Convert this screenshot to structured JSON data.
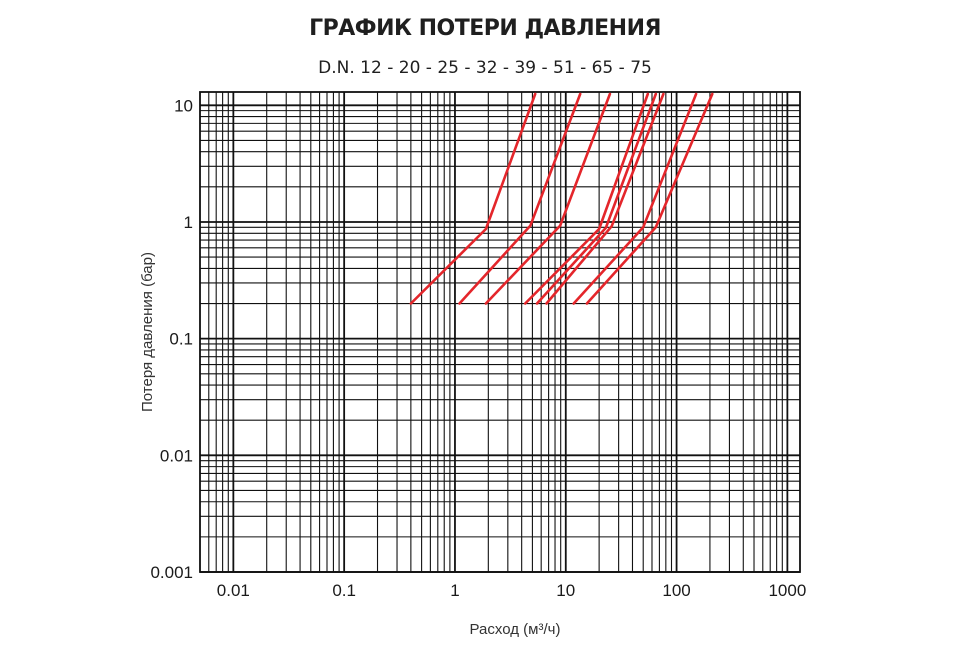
{
  "chart_data": {
    "type": "line",
    "title": "ГРАФИК ПОТЕРИ ДАВЛЕНИЯ",
    "subtitle": "D.N. 12 - 20 - 25 - 32 - 39 - 51 - 65 - 75",
    "xlabel": "Расход (м³/ч)",
    "ylabel": "Потеря давления (бар)",
    "xscale": "log",
    "yscale": "log",
    "xlim": [
      0.005,
      1300
    ],
    "ylim": [
      0.001,
      13
    ],
    "grid": true,
    "xticks": [
      {
        "value": 0.01,
        "label": "0.01"
      },
      {
        "value": 0.1,
        "label": "0.1"
      },
      {
        "value": 1,
        "label": "1"
      },
      {
        "value": 10,
        "label": "10"
      },
      {
        "value": 100,
        "label": "100"
      },
      {
        "value": 1000,
        "label": "1000"
      }
    ],
    "yticks": [
      {
        "value": 0.001,
        "label": "0.001"
      },
      {
        "value": 0.01,
        "label": "0.01"
      },
      {
        "value": 0.1,
        "label": "0.1"
      },
      {
        "value": 1,
        "label": "1"
      },
      {
        "value": 10,
        "label": "10"
      }
    ],
    "line_color": "#e4262b",
    "series": [
      {
        "points": [
          [
            0.4,
            0.2
          ],
          [
            1.9,
            0.87
          ],
          [
            5.3,
            12.5
          ]
        ]
      },
      {
        "points": [
          [
            1.1,
            0.2
          ],
          [
            4.8,
            0.93
          ],
          [
            13.5,
            12.5
          ]
        ]
      },
      {
        "points": [
          [
            1.9,
            0.2
          ],
          [
            8.9,
            0.93
          ],
          [
            25,
            12.5
          ]
        ]
      },
      {
        "points": [
          [
            4.3,
            0.2
          ],
          [
            20,
            0.87
          ],
          [
            55,
            12.5
          ]
        ]
      },
      {
        "points": [
          [
            5.5,
            0.2
          ],
          [
            23,
            0.89
          ],
          [
            65,
            12.5
          ]
        ]
      },
      {
        "points": [
          [
            6.7,
            0.2
          ],
          [
            26,
            0.92
          ],
          [
            76,
            12.5
          ]
        ]
      },
      {
        "points": [
          [
            11.8,
            0.2
          ],
          [
            50,
            0.9
          ],
          [
            150,
            12.5
          ]
        ]
      },
      {
        "points": [
          [
            15.5,
            0.2
          ],
          [
            65,
            0.9
          ],
          [
            210,
            12.5
          ]
        ]
      }
    ]
  }
}
